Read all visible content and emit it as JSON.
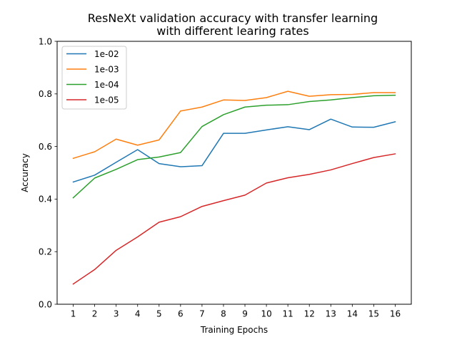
{
  "chart_data": {
    "type": "line",
    "title_line1": "ResNeXt validation accuracy with transfer learning",
    "title_line2": "with different learing rates",
    "xlabel": "Training Epochs",
    "ylabel": "Accuracy",
    "x": [
      1,
      2,
      3,
      4,
      5,
      6,
      7,
      8,
      9,
      10,
      11,
      12,
      13,
      14,
      15,
      16
    ],
    "xlim": [
      0.25,
      16.75
    ],
    "ylim": [
      0.0,
      1.0
    ],
    "yticks": [
      "0.0",
      "0.2",
      "0.4",
      "0.6",
      "0.8",
      "1.0"
    ],
    "grid": false,
    "legend_position": "top-left",
    "series": [
      {
        "name": "1e-02",
        "color": "#1f77b4",
        "values": [
          0.465,
          0.491,
          0.54,
          0.588,
          0.535,
          0.523,
          0.527,
          0.65,
          0.65,
          0.663,
          0.675,
          0.664,
          0.704,
          0.674,
          0.673,
          0.694
        ]
      },
      {
        "name": "1e-03",
        "color": "#ff7f0e",
        "values": [
          0.555,
          0.58,
          0.628,
          0.605,
          0.625,
          0.735,
          0.75,
          0.777,
          0.775,
          0.786,
          0.81,
          0.791,
          0.797,
          0.798,
          0.805,
          0.805
        ]
      },
      {
        "name": "1e-04",
        "color": "#2ca02c",
        "values": [
          0.405,
          0.48,
          0.513,
          0.55,
          0.56,
          0.577,
          0.676,
          0.721,
          0.75,
          0.757,
          0.759,
          0.771,
          0.777,
          0.786,
          0.793,
          0.795
        ]
      },
      {
        "name": "1e-05",
        "color": "#d62728",
        "values": [
          0.077,
          0.132,
          0.205,
          0.256,
          0.312,
          0.333,
          0.372,
          0.394,
          0.415,
          0.461,
          0.481,
          0.494,
          0.511,
          0.535,
          0.558,
          0.572
        ]
      }
    ]
  }
}
